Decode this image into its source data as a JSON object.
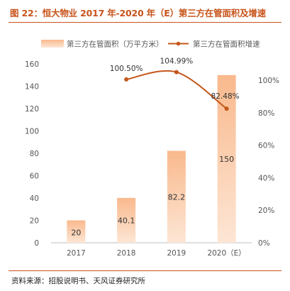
{
  "title": "图 22：恒大物业 2017 年-2020 年（E）第三方在管面积及增速",
  "source": "资料来源：招股说明书、天风证券研究所",
  "colors": {
    "bar_top": "#f9b98d",
    "bar_bottom": "#fde6d5",
    "line": "#c4571b",
    "accent": "#c8541b"
  },
  "chart_data": {
    "type": "bar",
    "categories": [
      "2017",
      "2018",
      "2019",
      "2020（E）"
    ],
    "series": [
      {
        "name": "第三方在管面积（万平方米）",
        "type": "bar",
        "axis": "left",
        "values": [
          20,
          40.1,
          82.2,
          150
        ],
        "labels": [
          "20",
          "40.1",
          "82.2",
          "150"
        ]
      },
      {
        "name": "第三方在管面积增速",
        "type": "line",
        "axis": "right",
        "values": [
          null,
          100.5,
          104.99,
          82.48
        ],
        "labels": [
          "",
          "100.50%",
          "104.99%",
          "82.48%"
        ]
      }
    ],
    "y_left": {
      "min": 0,
      "max": 160,
      "ticks": [
        "0",
        "20",
        "40",
        "60",
        "80",
        "100",
        "120",
        "140",
        "160"
      ]
    },
    "y_right": {
      "min": 0,
      "max": 120,
      "ticks": [
        "0%",
        "20%",
        "40%",
        "60%",
        "80%",
        "100%"
      ]
    },
    "legend_position": "top",
    "grid": false
  }
}
